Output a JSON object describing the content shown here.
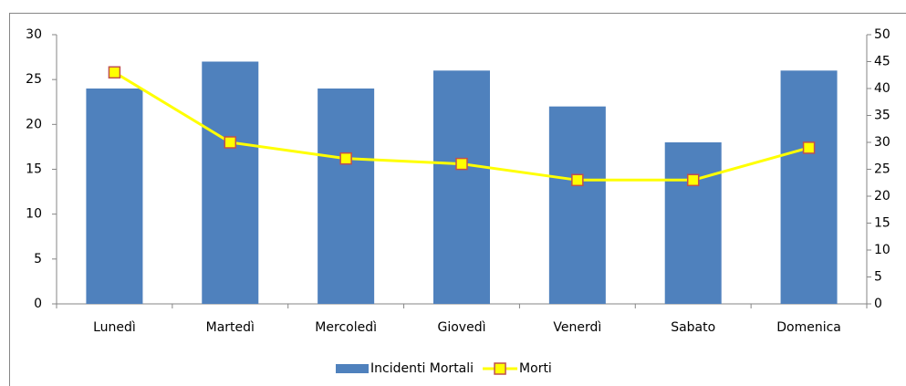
{
  "chart_data": {
    "type": "combo",
    "categories": [
      "Lunedì",
      "Martedì",
      "Mercoledì",
      "Giovedì",
      "Venerdì",
      "Sabato",
      "Domenica"
    ],
    "series": [
      {
        "name": "Incidenti Mortali",
        "type": "bar",
        "color": "#4f81bd",
        "values": [
          24,
          27,
          24,
          26,
          22,
          18,
          26
        ]
      },
      {
        "name": "Morti",
        "type": "line",
        "axis": "y2",
        "color": "#ffff00",
        "marker_edge_color": "#c0504d",
        "values": [
          43,
          30,
          27,
          26,
          23,
          23,
          29
        ]
      }
    ],
    "ylim": [
      0,
      30
    ],
    "yticks": [
      0,
      5,
      10,
      15,
      20,
      25,
      30
    ],
    "y2lim": [
      0,
      50
    ],
    "y2ticks": [
      0,
      5,
      10,
      15,
      20,
      25,
      30,
      35,
      40,
      45,
      50
    ],
    "legend": "bottom"
  }
}
